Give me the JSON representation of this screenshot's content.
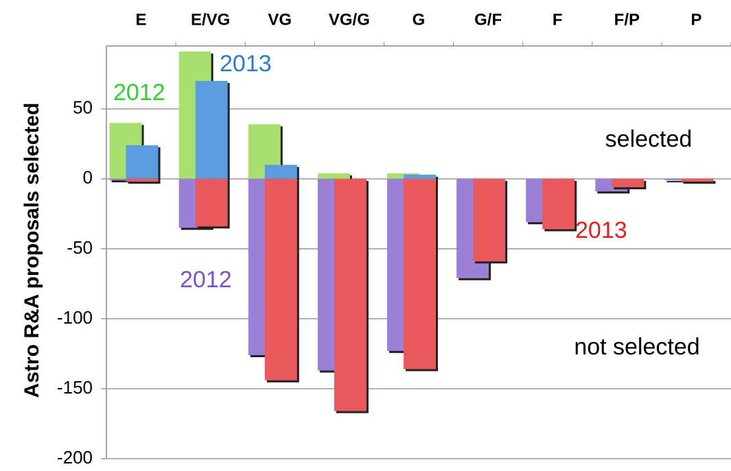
{
  "chart_data": {
    "type": "bar",
    "ylabel": "Astro R&A proposals selected",
    "categories": [
      "E",
      "E/VG",
      "VG",
      "VG/G",
      "G",
      "G/F",
      "F",
      "F/P",
      "P"
    ],
    "series": [
      {
        "name": "2012 selected",
        "color": "#a8e070",
        "values": [
          40,
          91,
          39,
          4,
          4,
          0,
          0,
          0,
          0
        ]
      },
      {
        "name": "2013 selected",
        "color": "#5b9be0",
        "values": [
          24,
          70,
          10,
          0,
          3,
          0,
          0,
          0,
          0
        ]
      },
      {
        "name": "2012 not selected",
        "color": "#9a80d6",
        "values": [
          -1,
          -35,
          -126,
          -137,
          -123,
          -71,
          -31,
          -9,
          -1
        ]
      },
      {
        "name": "2013 not selected",
        "color": "#e85a5c",
        "values": [
          -2,
          -34,
          -144,
          -166,
          -136,
          -59,
          -36,
          -6,
          -2
        ]
      }
    ],
    "annotations": [
      {
        "text": "2012",
        "color": "#33cc33"
      },
      {
        "text": "2013",
        "color": "#2f7cc7"
      },
      {
        "text": "selected",
        "color": "#000000"
      },
      {
        "text": "2013",
        "color": "#e0201e"
      },
      {
        "text": "2012",
        "color": "#8050c8"
      },
      {
        "text": "not selected",
        "color": "#000000"
      }
    ],
    "ylim": [
      -200,
      95
    ],
    "yticks": [
      -200,
      -150,
      -100,
      -50,
      0,
      50
    ],
    "grid": true
  }
}
